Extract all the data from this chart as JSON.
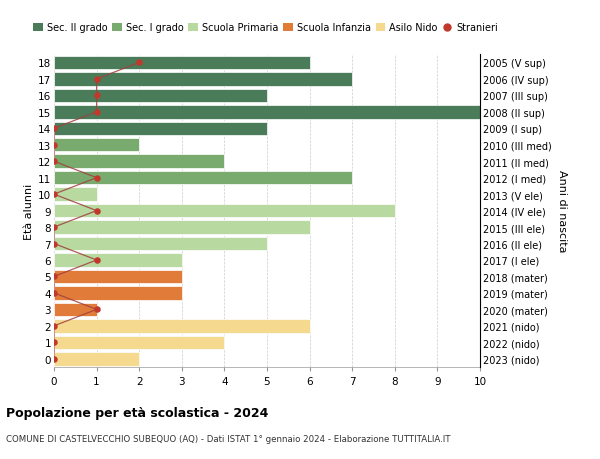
{
  "ages": [
    18,
    17,
    16,
    15,
    14,
    13,
    12,
    11,
    10,
    9,
    8,
    7,
    6,
    5,
    4,
    3,
    2,
    1,
    0
  ],
  "years": [
    "2005 (V sup)",
    "2006 (IV sup)",
    "2007 (III sup)",
    "2008 (II sup)",
    "2009 (I sup)",
    "2010 (III med)",
    "2011 (II med)",
    "2012 (I med)",
    "2013 (V ele)",
    "2014 (IV ele)",
    "2015 (III ele)",
    "2016 (II ele)",
    "2017 (I ele)",
    "2018 (mater)",
    "2019 (mater)",
    "2020 (mater)",
    "2021 (nido)",
    "2022 (nido)",
    "2023 (nido)"
  ],
  "bar_values": [
    6,
    7,
    5,
    10,
    5,
    2,
    4,
    7,
    1,
    8,
    6,
    5,
    3,
    3,
    3,
    1,
    6,
    4,
    2
  ],
  "bar_colors": [
    "#4a7c59",
    "#4a7c59",
    "#4a7c59",
    "#4a7c59",
    "#4a7c59",
    "#7aab6e",
    "#7aab6e",
    "#7aab6e",
    "#b8d9a0",
    "#b8d9a0",
    "#b8d9a0",
    "#b8d9a0",
    "#b8d9a0",
    "#e07b39",
    "#e07b39",
    "#e07b39",
    "#f5d98e",
    "#f5d98e",
    "#f5d98e"
  ],
  "stranieri": [
    2,
    1,
    1,
    1,
    0,
    0,
    0,
    1,
    0,
    1,
    0,
    0,
    1,
    0,
    0,
    1,
    0,
    0,
    0
  ],
  "legend_labels": [
    "Sec. II grado",
    "Sec. I grado",
    "Scuola Primaria",
    "Scuola Infanzia",
    "Asilo Nido",
    "Stranieri"
  ],
  "legend_colors": [
    "#4a7c59",
    "#7aab6e",
    "#b8d9a0",
    "#e07b39",
    "#f5d98e",
    "#c0392b"
  ],
  "title": "Popolazione per età scolastica - 2024",
  "subtitle": "COMUNE DI CASTELVECCHIO SUBEQUO (AQ) - Dati ISTAT 1° gennaio 2024 - Elaborazione TUTTITALIA.IT",
  "ylabel_left": "Età alunni",
  "ylabel_right": "Anni di nascita",
  "xlim": [
    0,
    10
  ],
  "stranieri_color": "#c0392b",
  "stranieri_line_color": "#a04040",
  "bg_color": "#ffffff",
  "grid_color": "#cccccc"
}
